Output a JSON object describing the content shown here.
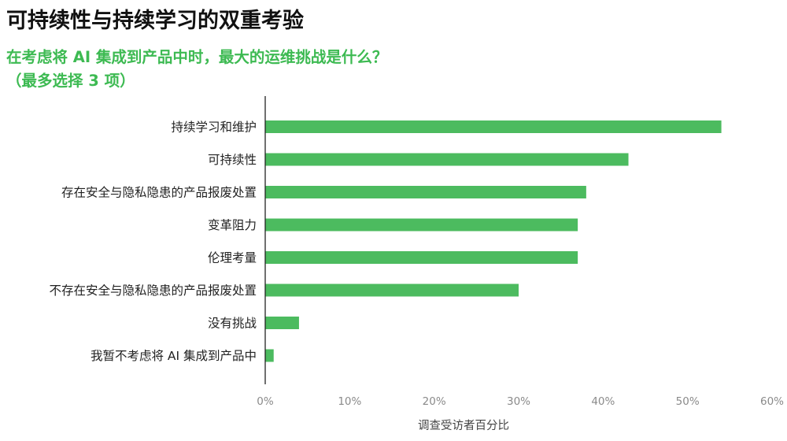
{
  "title": "可持续性与持续学习的双重考验",
  "question_lines": [
    "在考虑将 AI 集成到产品中时，最大的运维挑战是什么？",
    "（最多选择 3 项）"
  ],
  "colors": {
    "bar": "#4cbb5f",
    "title": "#111111",
    "question": "#3dba52",
    "axis": "#222222",
    "grid": "#dddddd",
    "tick": "#8a8a8a"
  },
  "chart_data": {
    "type": "bar",
    "orientation": "horizontal",
    "title": "可持续性与持续学习的双重考验",
    "subtitle": "在考虑将 AI 集成到产品中时，最大的运维挑战是什么？（最多选择 3 项）",
    "categories": [
      "持续学习和维护",
      "可持续性",
      "存在安全与隐私隐患的产品报废处置",
      "变革阻力",
      "伦理考量",
      "不存在安全与隐私隐患的产品报废处置",
      "没有挑战",
      "我暂不考虑将 AI 集成到产品中"
    ],
    "values": [
      54,
      43,
      38,
      37,
      37,
      30,
      4,
      1
    ],
    "xlabel": "调查受访者百分比",
    "ylabel": "",
    "xlim": [
      0,
      60
    ],
    "x_ticks": [
      0,
      10,
      20,
      30,
      40,
      50,
      60
    ],
    "x_tick_labels": [
      "0%",
      "10%",
      "20%",
      "30%",
      "40%",
      "50%",
      "60%"
    ],
    "grid": false,
    "legend": "none"
  }
}
